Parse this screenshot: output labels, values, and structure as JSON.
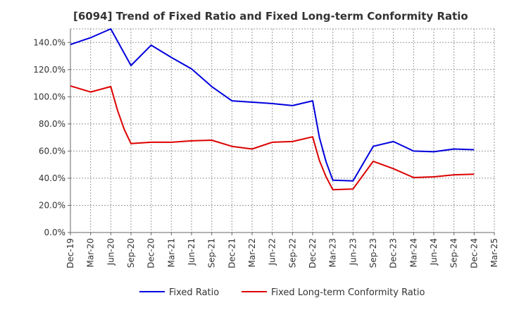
{
  "chart_data": {
    "type": "line",
    "title": "[6094]  Trend of Fixed Ratio and Fixed Long-term Conformity Ratio",
    "xlabel": "",
    "ylabel": "",
    "x_ticks": [
      "Dec-19",
      "Mar-20",
      "Jun-20",
      "Sep-20",
      "Dec-20",
      "Mar-21",
      "Jun-21",
      "Sep-21",
      "Dec-21",
      "Mar-22",
      "Jun-22",
      "Sep-22",
      "Dec-22",
      "Mar-23",
      "Jun-23",
      "Sep-23",
      "Dec-23",
      "Mar-24",
      "Jun-24",
      "Sep-24",
      "Dec-24",
      "Mar-25"
    ],
    "y_ticks": [
      "0.0%",
      "20.0%",
      "40.0%",
      "60.0%",
      "80.0%",
      "100.0%",
      "120.0%",
      "140.0%"
    ],
    "ylim": [
      0,
      150
    ],
    "grid": true,
    "legend_position": "bottom",
    "series": [
      {
        "name": "Fixed Ratio",
        "color": "#0000dd",
        "x": [
          "Dec-19",
          "Mar-20",
          "Jun-20",
          "Sep-20",
          "Dec-20",
          "Mar-21",
          "Jun-21",
          "Sep-21",
          "Dec-21",
          "Mar-22",
          "Jun-22",
          "Sep-22",
          "Dec-22",
          "Jan-23",
          "Feb-23",
          "Mar-23",
          "Jun-23",
          "Sep-23",
          "Dec-23",
          "Mar-24",
          "Jun-24",
          "Sep-24",
          "Dec-24"
        ],
        "values": [
          138.5,
          143.5,
          150.0,
          123.0,
          138.0,
          129.0,
          120.5,
          107.5,
          97.0,
          96.0,
          95.0,
          93.5,
          97.0,
          70.0,
          52.0,
          38.5,
          38.0,
          63.5,
          67.0,
          60.0,
          59.5,
          61.5,
          61.0
        ]
      },
      {
        "name": "Fixed Long-term Conformity Ratio",
        "color": "#dd0000",
        "x": [
          "Dec-19",
          "Mar-20",
          "Jun-20",
          "Jul-20",
          "Aug-20",
          "Sep-20",
          "Dec-20",
          "Mar-21",
          "Jun-21",
          "Sep-21",
          "Dec-21",
          "Mar-22",
          "Jun-22",
          "Sep-22",
          "Dec-22",
          "Jan-23",
          "Feb-23",
          "Mar-23",
          "Jun-23",
          "Sep-23",
          "Dec-23",
          "Mar-24",
          "Jun-24",
          "Sep-24",
          "Dec-24"
        ],
        "values": [
          108.0,
          103.5,
          107.5,
          90.0,
          76.0,
          65.5,
          66.5,
          66.5,
          67.5,
          68.0,
          63.5,
          61.5,
          66.5,
          67.0,
          70.5,
          53.0,
          41.0,
          31.5,
          32.0,
          52.5,
          47.0,
          40.5,
          41.0,
          42.5,
          43.0
        ]
      }
    ]
  }
}
